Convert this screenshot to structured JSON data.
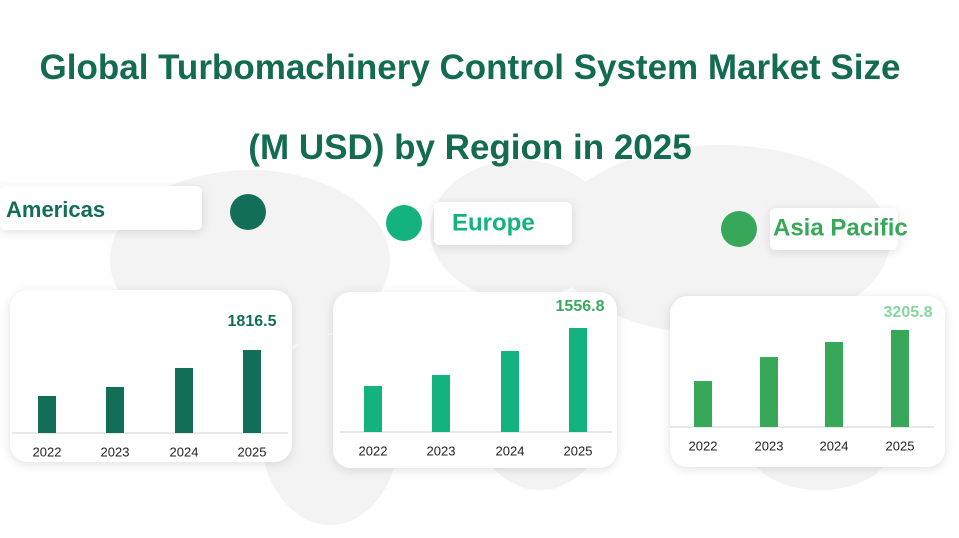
{
  "title": "Global Turbomachinery Control System Market Size (M USD) by Region in 2025",
  "chart_data": [
    {
      "type": "bar",
      "title": "Americas",
      "color": "#136e57",
      "label_color": "#136e57",
      "categories": [
        "2022",
        "2023",
        "2024",
        "2025"
      ],
      "values": [
        810,
        1007,
        1423,
        1816.5
      ],
      "value_labels": [
        null,
        null,
        null,
        "1816.5"
      ]
    },
    {
      "type": "bar",
      "title": "Europe",
      "color": "#14b27e",
      "label_color": "#3aa85f",
      "categories": [
        "2022",
        "2023",
        "2024",
        "2025"
      ],
      "values": [
        689,
        853,
        1212,
        1556.8
      ],
      "value_labels": [
        null,
        null,
        null,
        "1556.8"
      ]
    },
    {
      "type": "bar",
      "title": "Asia Pacific",
      "color": "#37a85a",
      "label_color": "#86d6a0",
      "categories": [
        "2022",
        "2023",
        "2024",
        "2025"
      ],
      "values": [
        1520,
        2313,
        2809,
        3205.8
      ],
      "value_labels": [
        null,
        null,
        null,
        "3205.8"
      ]
    }
  ]
}
